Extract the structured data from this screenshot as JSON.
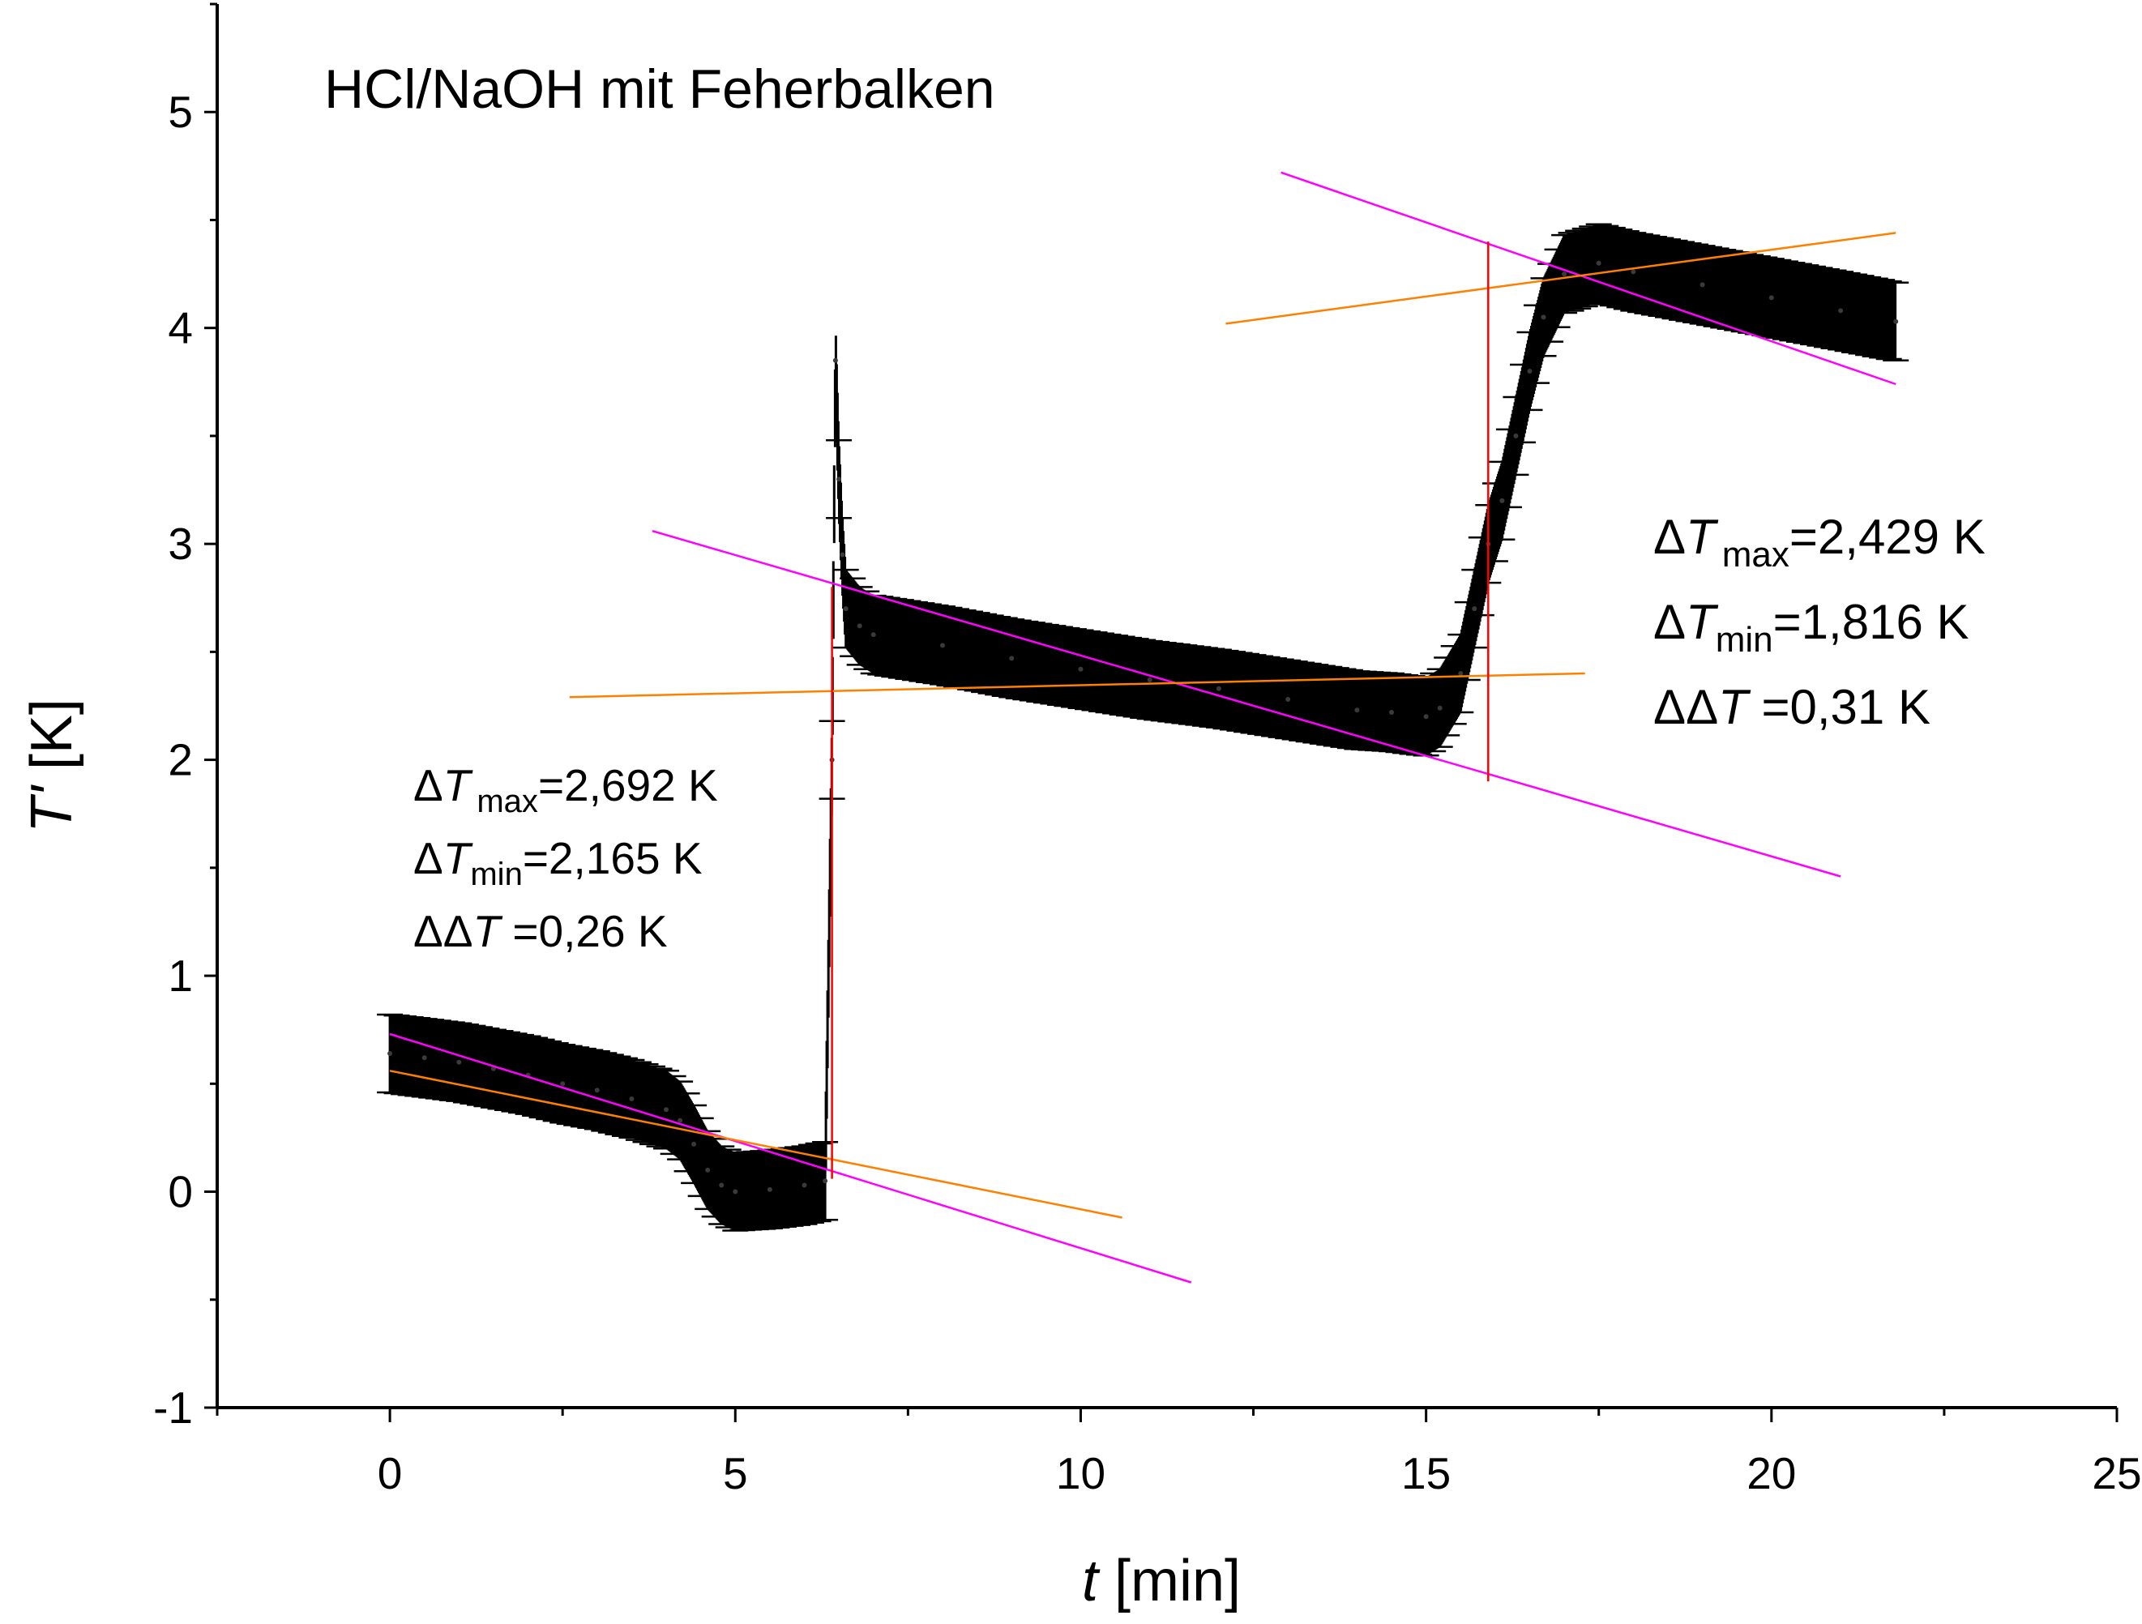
{
  "chart_data": {
    "type": "scatter",
    "title": "HCl/NaOH mit Feherbalken",
    "xlabel": {
      "var": "t",
      "unit": " [min]"
    },
    "ylabel": {
      "var": "T'",
      "unit": " [K]"
    },
    "xlim": [
      -2.5,
      25
    ],
    "ylim": [
      -1,
      5.5
    ],
    "x_ticks": [
      0,
      5,
      10,
      15,
      20,
      25
    ],
    "y_ticks": [
      -1,
      0,
      1,
      2,
      3,
      4,
      5
    ],
    "grid": false,
    "legend": "none",
    "colors": {
      "data": "#000000",
      "fit_steep": "#ff00ff",
      "fit_flat": "#ff8000",
      "delta_line": "#ff0000",
      "axes": "#000000"
    },
    "series": [
      {
        "type": "scatter_with_errorbars",
        "error_half_width": 0.18,
        "points": [
          [
            0.0,
            0.64
          ],
          [
            0.5,
            0.62
          ],
          [
            1.0,
            0.6
          ],
          [
            1.5,
            0.57
          ],
          [
            2.0,
            0.54
          ],
          [
            2.5,
            0.5
          ],
          [
            3.0,
            0.47
          ],
          [
            3.5,
            0.43
          ],
          [
            4.0,
            0.38
          ],
          [
            4.2,
            0.33
          ],
          [
            4.4,
            0.22
          ],
          [
            4.6,
            0.1
          ],
          [
            4.8,
            0.03
          ],
          [
            5.0,
            0.0
          ],
          [
            5.5,
            0.01
          ],
          [
            6.0,
            0.03
          ],
          [
            6.3,
            0.05
          ],
          [
            6.4,
            2.0
          ],
          [
            6.45,
            3.85
          ],
          [
            6.5,
            3.3
          ],
          [
            6.55,
            2.95
          ],
          [
            6.6,
            2.7
          ],
          [
            6.8,
            2.62
          ],
          [
            7.0,
            2.58
          ],
          [
            8.0,
            2.53
          ],
          [
            9.0,
            2.47
          ],
          [
            10.0,
            2.42
          ],
          [
            11.0,
            2.37
          ],
          [
            12.0,
            2.33
          ],
          [
            13.0,
            2.28
          ],
          [
            14.0,
            2.23
          ],
          [
            14.5,
            2.22
          ],
          [
            15.0,
            2.2
          ],
          [
            15.2,
            2.24
          ],
          [
            15.5,
            2.4
          ],
          [
            15.7,
            2.7
          ],
          [
            15.9,
            3.0
          ],
          [
            16.1,
            3.2
          ],
          [
            16.3,
            3.5
          ],
          [
            16.5,
            3.8
          ],
          [
            16.7,
            4.05
          ],
          [
            17.0,
            4.25
          ],
          [
            17.5,
            4.3
          ],
          [
            18.0,
            4.26
          ],
          [
            19.0,
            4.2
          ],
          [
            20.0,
            4.14
          ],
          [
            21.0,
            4.08
          ],
          [
            21.8,
            4.03
          ]
        ]
      },
      {
        "type": "line",
        "role": "fit_steep",
        "segments": [
          [
            [
              0.0,
              0.73
            ],
            [
              11.6,
              -0.42
            ]
          ],
          [
            [
              3.8,
              3.06
            ],
            [
              21.0,
              1.46
            ]
          ],
          [
            [
              12.9,
              4.72
            ],
            [
              21.8,
              3.74
            ]
          ]
        ]
      },
      {
        "type": "line",
        "role": "fit_flat",
        "segments": [
          [
            [
              0.0,
              0.56
            ],
            [
              10.6,
              -0.12
            ]
          ],
          [
            [
              2.6,
              2.29
            ],
            [
              17.3,
              2.4
            ]
          ],
          [
            [
              12.1,
              4.02
            ],
            [
              21.8,
              4.44
            ]
          ]
        ]
      },
      {
        "type": "vline",
        "role": "delta_line",
        "segments": [
          [
            [
              6.4,
              0.06
            ],
            [
              6.4,
              2.8
            ]
          ],
          [
            [
              15.9,
              1.9
            ],
            [
              15.9,
              4.4
            ]
          ]
        ]
      }
    ],
    "annotations": [
      {
        "pos": "lower-left",
        "lines": [
          {
            "pre": "Δ",
            "var": "T",
            "sub": "max",
            "val": "=2,692 K"
          },
          {
            "pre": "Δ",
            "var": "T",
            "sub": "min",
            "val": "=2,165 K"
          },
          {
            "pre": "ΔΔ",
            "var": "T",
            "sub": "",
            "val": " =0,26 K"
          }
        ]
      },
      {
        "pos": "upper-right",
        "lines": [
          {
            "pre": "Δ",
            "var": "T",
            "sub": "max",
            "val": "=2,429 K"
          },
          {
            "pre": "Δ",
            "var": "T",
            "sub": "min",
            "val": "=1,816 K"
          },
          {
            "pre": "ΔΔ",
            "var": "T",
            "sub": "",
            "val": " =0,31 K"
          }
        ]
      }
    ]
  }
}
